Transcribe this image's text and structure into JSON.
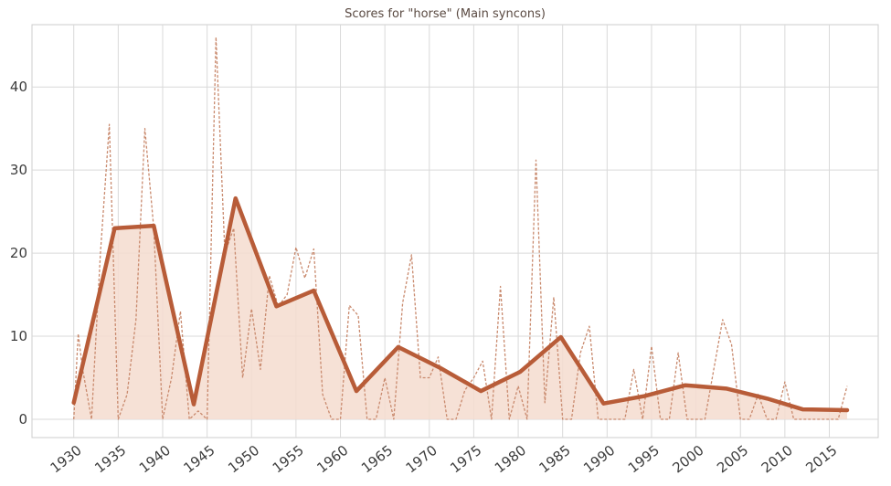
{
  "chart_data": {
    "type": "line",
    "title": "Scores for \"horse\" (Main syncons)",
    "xlabel": "",
    "ylabel": "",
    "xlim": [
      1925.3,
      1930.0
    ],
    "x_axis_max": 2020.5,
    "ylim": [
      -2.2,
      47.5
    ],
    "x_ticks": [
      1930,
      1935,
      1940,
      1945,
      1950,
      1955,
      1960,
      1965,
      1970,
      1975,
      1980,
      1985,
      1990,
      1995,
      2000,
      2005,
      2010,
      2015
    ],
    "x_tick_labels": [
      "1930",
      "1935",
      "1940",
      "1945",
      "1950",
      "1955",
      "1960",
      "1965",
      "1970",
      "1975",
      "1980",
      "1985",
      "1990",
      "1995",
      "2000",
      "2005",
      "2010",
      "2015"
    ],
    "y_ticks": [
      0,
      10,
      20,
      30,
      40
    ],
    "y_tick_labels": [
      "0",
      "10",
      "20",
      "30",
      "40"
    ],
    "grid": true,
    "colors": {
      "smoothed_line": "#b85c38",
      "raw_line": "#c98a6e",
      "area_fill": "#f5dccf"
    },
    "series": [
      {
        "style": "dashed-thin",
        "x": [
          1930,
          1930.5,
          1931,
          1932,
          1933,
          1934,
          1935,
          1936,
          1937,
          1938,
          1939,
          1940,
          1941,
          1942,
          1943,
          1944,
          1945,
          1946,
          1947,
          1948,
          1949,
          1950,
          1951,
          1952,
          1953,
          1954,
          1955,
          1956,
          1957,
          1958,
          1959,
          1960,
          1961,
          1962,
          1963,
          1964,
          1965,
          1966,
          1967,
          1968,
          1969,
          1970,
          1971,
          1972,
          1973,
          1974,
          1975,
          1976,
          1977,
          1978,
          1979,
          1980,
          1981,
          1982,
          1983,
          1984,
          1985,
          1986,
          1987,
          1988,
          1989,
          1990,
          1991,
          1992,
          1993,
          1994,
          1995,
          1996,
          1997,
          1998,
          1999,
          2000,
          2001,
          2002,
          2003,
          2004,
          2005,
          2006,
          2007,
          2008,
          2009,
          2010,
          2011,
          2012,
          2013,
          2014,
          2015,
          2016,
          2017
        ],
        "values": [
          0,
          10.3,
          6,
          0,
          20,
          35.5,
          0,
          3,
          12,
          35,
          23,
          0,
          5,
          13,
          0,
          1,
          0,
          46,
          20,
          23,
          5,
          13.3,
          6,
          17.3,
          13.6,
          15,
          20.7,
          17,
          20.5,
          3,
          0,
          0,
          13.7,
          12.5,
          0,
          0,
          5,
          0,
          14,
          19.8,
          5,
          5,
          7.5,
          0,
          0,
          3.5,
          5,
          7,
          0,
          16,
          0,
          4,
          0,
          31.2,
          2,
          14.7,
          0,
          0,
          8,
          11.2,
          0,
          0,
          0,
          0,
          6,
          0,
          8.8,
          0,
          0,
          8,
          0,
          0,
          0,
          6,
          12,
          9,
          0,
          0,
          3,
          0,
          0,
          4.5,
          0,
          0,
          0,
          0,
          0,
          0,
          4
        ]
      },
      {
        "style": "thick-smoothed-area",
        "x": [
          1930,
          1934.6,
          1939,
          1943.5,
          1948.2,
          1952.8,
          1957,
          1961.8,
          1966.5,
          1971.2,
          1975.8,
          1980.2,
          1984.8,
          1989.6,
          1994.2,
          1998.8,
          2003.4,
          2008,
          2012,
          2017
        ],
        "values": [
          2,
          23,
          23.3,
          1.8,
          26.6,
          13.6,
          15.5,
          3.4,
          8.7,
          6.2,
          3.4,
          5.7,
          9.9,
          1.9,
          2.8,
          4.1,
          3.7,
          2.5,
          1.2,
          1.1
        ]
      }
    ]
  }
}
